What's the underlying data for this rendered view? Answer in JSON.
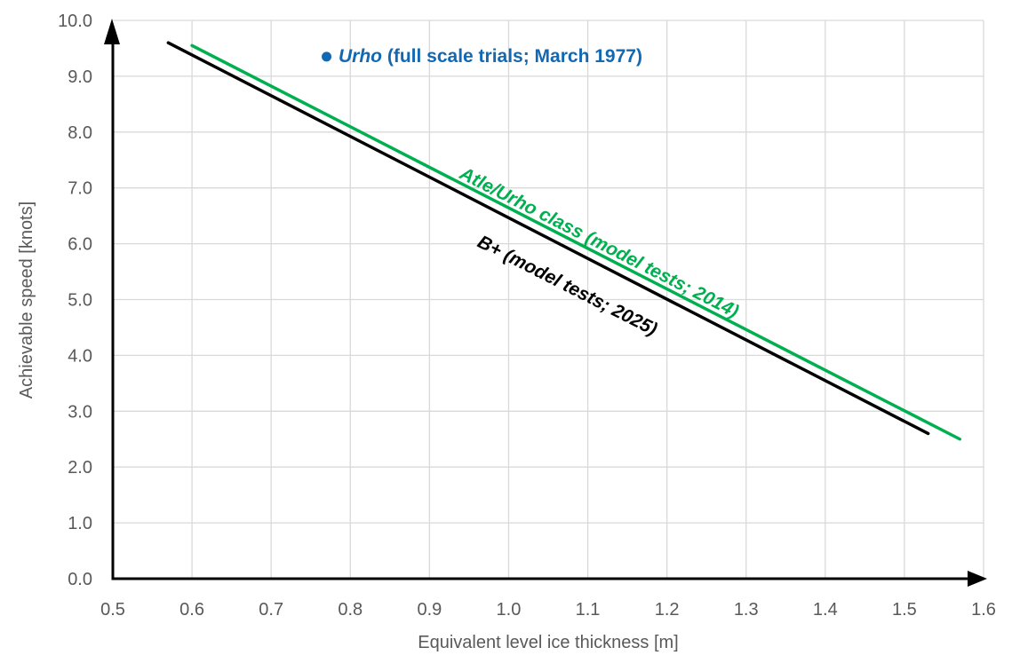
{
  "chart_data": {
    "type": "line",
    "title": "",
    "xlabel": "Equivalent level ice thickness [m]",
    "ylabel": "Achievable speed [knots]",
    "xlim": [
      0.5,
      1.6
    ],
    "ylim": [
      0.0,
      10.0
    ],
    "xticks": [
      0.5,
      0.6,
      0.7,
      0.8,
      0.9,
      1.0,
      1.1,
      1.2,
      1.3,
      1.4,
      1.5,
      1.6
    ],
    "yticks": [
      0.0,
      1.0,
      2.0,
      3.0,
      4.0,
      5.0,
      6.0,
      7.0,
      8.0,
      9.0,
      10.0
    ],
    "tick_decimals": 1,
    "grid": true,
    "legend_position": "inline-labels",
    "colors": {
      "background": "#FFFFFF",
      "gridline": "#D9D9D9",
      "axis": "#000000",
      "tick_text": "#595959",
      "urho_blue": "#1268B3",
      "atle_green": "#00B050",
      "bplus_black": "#000000"
    },
    "series": [
      {
        "name": "Atle/Urho class (model tests; 2014)",
        "type": "line",
        "color_key": "atle_green",
        "stroke_width": 3.5,
        "points": [
          [
            0.6,
            9.55
          ],
          [
            1.57,
            2.5
          ]
        ]
      },
      {
        "name": "B+ (model tests; 2025)",
        "type": "line",
        "color_key": "bplus_black",
        "stroke_width": 3.5,
        "points": [
          [
            0.57,
            9.6
          ],
          [
            1.53,
            2.6
          ]
        ]
      }
    ],
    "scatter": [
      {
        "name": "Urho (full scale trials; March 1977)",
        "color_key": "urho_blue",
        "x": 0.77,
        "y": 9.35,
        "radius": 5.5
      }
    ],
    "annotations": {
      "urho": {
        "prefix": "Urho",
        "rest": " (full scale trials; March 1977)",
        "color_key": "urho_blue",
        "angle": 0
      },
      "atle": {
        "text": "Atle/Urho class (model tests; 2014)",
        "color_key": "atle_green",
        "angle": 27
      },
      "bplus": {
        "text": "B+ (model tests; 2025)",
        "color_key": "bplus_black",
        "angle": 27
      }
    }
  }
}
